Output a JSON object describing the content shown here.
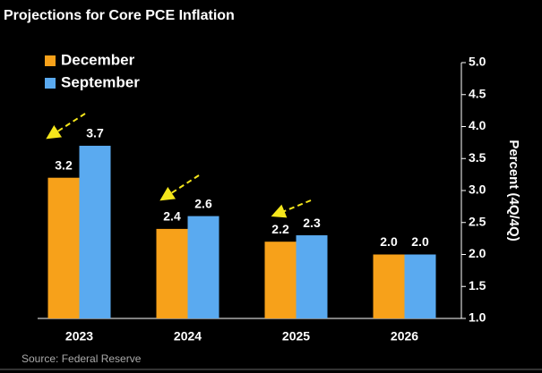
{
  "chart_data": {
    "type": "bar",
    "title": "Projections for Core PCE Inflation",
    "y_label": "Percent (4Q/4Q)",
    "source": "Source: Federal Reserve",
    "categories": [
      "2023",
      "2024",
      "2025",
      "2026"
    ],
    "series": [
      {
        "name": "December",
        "color": "#f7a11a",
        "values": [
          3.2,
          2.4,
          2.2,
          2
        ],
        "value_labels": [
          "3.2",
          "2.4",
          "2.2",
          "2.0"
        ]
      },
      {
        "name": "September",
        "color": "#5aaaf0",
        "values": [
          3.7,
          2.6,
          2.3,
          2
        ],
        "value_labels": [
          "3.7",
          "2.6",
          "2.3",
          "2.0"
        ]
      }
    ],
    "ylim": [
      1,
      5
    ],
    "yticks": [
      {
        "value": 1,
        "label": "1.0"
      },
      1.5,
      {
        "value": 2,
        "label": "2.0"
      },
      2.5,
      {
        "value": 3,
        "label": "3.0"
      },
      3.5,
      {
        "value": 4,
        "label": "4.0"
      },
      4.5,
      {
        "value": 5,
        "label": "5.0"
      }
    ],
    "y_axis_side": "right"
  }
}
